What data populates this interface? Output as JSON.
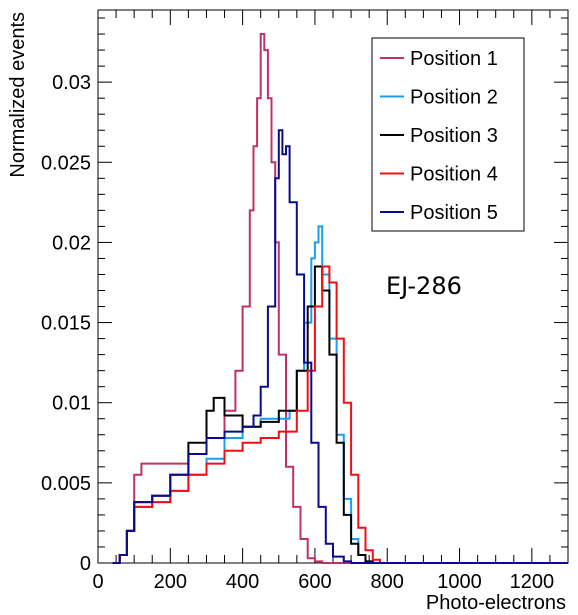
{
  "chart_data": {
    "type": "line",
    "title": "",
    "xlabel": "Photo-electrons",
    "ylabel": "Normalized events",
    "xlim": [
      0,
      1300
    ],
    "ylim": [
      0,
      0.0345
    ],
    "x_ticks": [
      0,
      200,
      400,
      600,
      800,
      1000,
      1200
    ],
    "x_tick_labels": [
      "0",
      "200",
      "400",
      "600",
      "800",
      "1000",
      "1200"
    ],
    "y_ticks": [
      0,
      0.005,
      0.01,
      0.015,
      0.02,
      0.025,
      0.03
    ],
    "y_tick_labels": [
      "0",
      "0.005",
      "0.01",
      "0.015",
      "0.02",
      "0.025",
      "0.03"
    ],
    "annotation": "EJ-286",
    "legend_position": "top-right",
    "grid": false,
    "series": [
      {
        "name": "Position 1",
        "color": "#c0306a",
        "x": [
          40,
          60,
          80,
          100,
          120,
          150,
          200,
          250,
          300,
          350,
          380,
          400,
          420,
          430,
          440,
          450,
          460,
          470,
          480,
          490,
          500,
          520,
          540,
          560,
          580,
          600,
          620,
          650
        ],
        "y": [
          0,
          0.0005,
          0.002,
          0.0055,
          0.0062,
          0.0062,
          0.0062,
          0.0068,
          0.0078,
          0.0095,
          0.012,
          0.016,
          0.022,
          0.026,
          0.029,
          0.033,
          0.032,
          0.029,
          0.025,
          0.02,
          0.013,
          0.006,
          0.0035,
          0.0015,
          0.0003,
          0.0001,
          0,
          0
        ]
      },
      {
        "name": "Position 2",
        "color": "#1a9ff0",
        "x": [
          40,
          60,
          80,
          100,
          150,
          200,
          250,
          300,
          350,
          400,
          450,
          500,
          530,
          550,
          570,
          590,
          600,
          610,
          620,
          640,
          660,
          680,
          700,
          720,
          740,
          760
        ],
        "y": [
          0,
          0.0005,
          0.002,
          0.0035,
          0.0038,
          0.0045,
          0.0055,
          0.0065,
          0.0078,
          0.0085,
          0.009,
          0.009,
          0.0095,
          0.012,
          0.015,
          0.019,
          0.02,
          0.021,
          0.018,
          0.014,
          0.008,
          0.004,
          0.0015,
          0.0005,
          0.0001,
          0
        ]
      },
      {
        "name": "Position 3",
        "color": "#000000",
        "x": [
          40,
          60,
          80,
          100,
          150,
          200,
          250,
          300,
          320,
          350,
          400,
          450,
          500,
          550,
          580,
          600,
          620,
          640,
          660,
          680,
          700,
          720,
          740,
          760
        ],
        "y": [
          0,
          0.0005,
          0.002,
          0.0038,
          0.0042,
          0.0055,
          0.0075,
          0.0095,
          0.0103,
          0.0092,
          0.0085,
          0.0088,
          0.0095,
          0.012,
          0.016,
          0.0185,
          0.017,
          0.013,
          0.0075,
          0.003,
          0.0012,
          0.0005,
          0.0001,
          0
        ]
      },
      {
        "name": "Position 4",
        "color": "#ee1111",
        "x": [
          40,
          60,
          80,
          100,
          150,
          200,
          250,
          300,
          350,
          400,
          450,
          500,
          550,
          580,
          600,
          620,
          640,
          660,
          680,
          700,
          720,
          740,
          760,
          780
        ],
        "y": [
          0,
          0.0005,
          0.002,
          0.0035,
          0.0038,
          0.0045,
          0.0055,
          0.0062,
          0.007,
          0.0075,
          0.0078,
          0.0082,
          0.0095,
          0.012,
          0.016,
          0.0185,
          0.0175,
          0.014,
          0.01,
          0.0055,
          0.0022,
          0.0008,
          0.0002,
          0
        ]
      },
      {
        "name": "Position 5",
        "color": "#0a0a8c",
        "x": [
          40,
          60,
          80,
          100,
          150,
          200,
          250,
          300,
          350,
          400,
          430,
          450,
          470,
          490,
          500,
          510,
          520,
          530,
          550,
          570,
          590,
          610,
          630,
          650,
          680,
          700
        ],
        "y": [
          0,
          0.0005,
          0.002,
          0.0038,
          0.0042,
          0.0055,
          0.0068,
          0.0078,
          0.0082,
          0.0085,
          0.0092,
          0.011,
          0.016,
          0.024,
          0.027,
          0.0255,
          0.026,
          0.0225,
          0.018,
          0.0125,
          0.0075,
          0.0035,
          0.0012,
          0.0004,
          0.0001,
          0
        ]
      }
    ]
  }
}
